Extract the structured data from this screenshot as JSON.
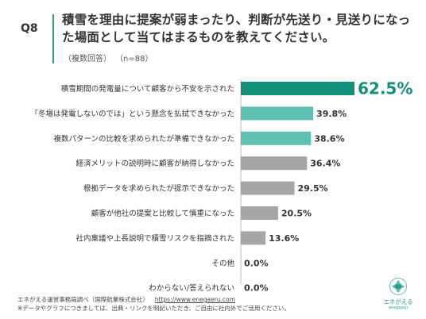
{
  "question": "Q8",
  "title": "積雪を理由に提案が弱まったり、判断が先送り・見送りになった場面として当てはまるものを教えてください。",
  "note": "（複数回答）",
  "sample": "（n=88）",
  "colors": {
    "top": "#12907a",
    "teal": "#5fc1b3",
    "gray": "#a6a6a6",
    "accent": "#12907a"
  },
  "chart_data": {
    "type": "bar",
    "orientation": "horizontal",
    "categories": [
      "積雪期間の発電量について顧客から不安を示された",
      "「冬場は発電しないのでは」という懸念を払拭できなかった",
      "複数パターンの比較を求められたが準備できなかった",
      "経済メリットの説明時に顧客が納得しなかった",
      "根拠データを求められたが提示できなかった",
      "顧客が他社の提案と比較して慎重になった",
      "社内稟議や上長説明で積雪リスクを指摘された",
      "その他",
      "わからない/答えられない"
    ],
    "values": [
      62.5,
      39.8,
      38.6,
      36.4,
      29.5,
      20.5,
      13.6,
      0.0,
      0.0
    ],
    "labels": [
      "62.5%",
      "39.8%",
      "38.6%",
      "36.4%",
      "29.5%",
      "20.5%",
      "13.6%",
      "0.0%",
      "0.0%"
    ],
    "unit": "%",
    "xlim": [
      0,
      62.5
    ]
  },
  "footer": {
    "source": "エネがえる運営事務局調べ（国際航業株式会社）",
    "url": "https://www.enegaeru.com",
    "disclaimer": "※データやグラフにつきましては、出典・リンクを明記いただき、ご自由に社内外でご活用ください。"
  },
  "logo": {
    "name": "エネがえる",
    "sub": "enegaeru",
    "icon": "leaf-logo-icon"
  }
}
